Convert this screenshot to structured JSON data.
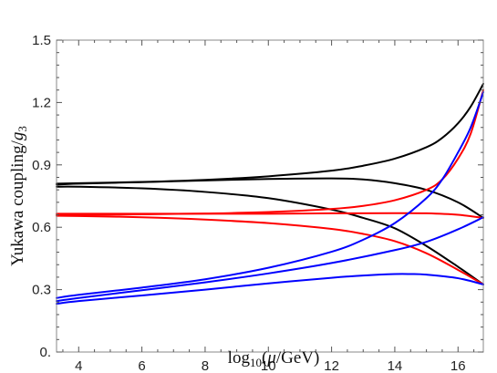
{
  "chart_data": {
    "type": "line",
    "title": "",
    "xlabel": "log10(μ/GeV)",
    "ylabel": "Yukawa coupling/g3",
    "xlim": [
      3.3,
      16.8
    ],
    "ylim": [
      0,
      1.5
    ],
    "xticks": [
      "4",
      "6",
      "8",
      "10",
      "12",
      "14",
      "16"
    ],
    "yticks": [
      "0.",
      "0.3",
      "0.6",
      "0.9",
      "1.2",
      "1.5"
    ],
    "grid": false,
    "legend": "none",
    "series": [
      {
        "color": "#000000",
        "x": [
          3.3,
          4,
          6,
          8,
          10,
          12,
          13,
          14,
          15,
          15.5,
          16,
          16.4,
          16.8
        ],
        "y": [
          0.81,
          0.812,
          0.818,
          0.828,
          0.845,
          0.872,
          0.896,
          0.93,
          0.985,
          1.03,
          1.1,
          1.18,
          1.29
        ]
      },
      {
        "color": "#000000",
        "x": [
          3.3,
          4,
          6,
          8,
          10,
          12,
          13,
          14,
          15,
          16,
          16.8
        ],
        "y": [
          0.805,
          0.81,
          0.817,
          0.825,
          0.832,
          0.835,
          0.83,
          0.812,
          0.78,
          0.72,
          0.645
        ]
      },
      {
        "color": "#000000",
        "x": [
          3.3,
          4,
          6,
          8,
          10,
          12,
          13,
          14,
          15,
          16,
          16.8
        ],
        "y": [
          0.795,
          0.795,
          0.787,
          0.77,
          0.74,
          0.685,
          0.645,
          0.595,
          0.51,
          0.41,
          0.325
        ]
      },
      {
        "color": "#ff0000",
        "x": [
          3.3,
          4,
          6,
          8,
          10,
          12,
          13,
          14,
          15,
          15.5,
          16,
          16.4,
          16.8
        ],
        "y": [
          0.66,
          0.66,
          0.662,
          0.666,
          0.673,
          0.688,
          0.703,
          0.73,
          0.78,
          0.83,
          0.93,
          1.05,
          1.26
        ]
      },
      {
        "color": "#ff0000",
        "x": [
          3.3,
          4,
          6,
          8,
          10,
          12,
          14,
          15,
          16,
          16.8
        ],
        "y": [
          0.665,
          0.665,
          0.665,
          0.665,
          0.665,
          0.667,
          0.668,
          0.667,
          0.66,
          0.645
        ]
      },
      {
        "color": "#ff0000",
        "x": [
          3.3,
          4,
          6,
          8,
          10,
          12,
          13,
          14,
          15,
          16,
          16.8
        ],
        "y": [
          0.655,
          0.654,
          0.648,
          0.637,
          0.62,
          0.592,
          0.568,
          0.533,
          0.475,
          0.395,
          0.325
        ]
      },
      {
        "color": "#0000ff",
        "x": [
          3.3,
          4,
          6,
          8,
          10,
          12,
          13,
          14,
          15,
          15.5,
          16,
          16.4,
          16.8
        ],
        "y": [
          0.26,
          0.275,
          0.31,
          0.35,
          0.405,
          0.482,
          0.54,
          0.62,
          0.74,
          0.83,
          0.96,
          1.08,
          1.25
        ]
      },
      {
        "color": "#0000ff",
        "x": [
          3.3,
          4,
          6,
          8,
          10,
          12,
          14,
          15,
          16,
          16.8
        ],
        "y": [
          0.245,
          0.26,
          0.297,
          0.335,
          0.378,
          0.428,
          0.49,
          0.53,
          0.59,
          0.648
        ]
      },
      {
        "color": "#0000ff",
        "x": [
          3.3,
          4,
          6,
          8,
          10,
          12,
          13,
          14,
          14.5,
          15,
          16,
          16.8
        ],
        "y": [
          0.232,
          0.245,
          0.272,
          0.3,
          0.33,
          0.357,
          0.368,
          0.375,
          0.375,
          0.372,
          0.355,
          0.325
        ]
      }
    ]
  }
}
